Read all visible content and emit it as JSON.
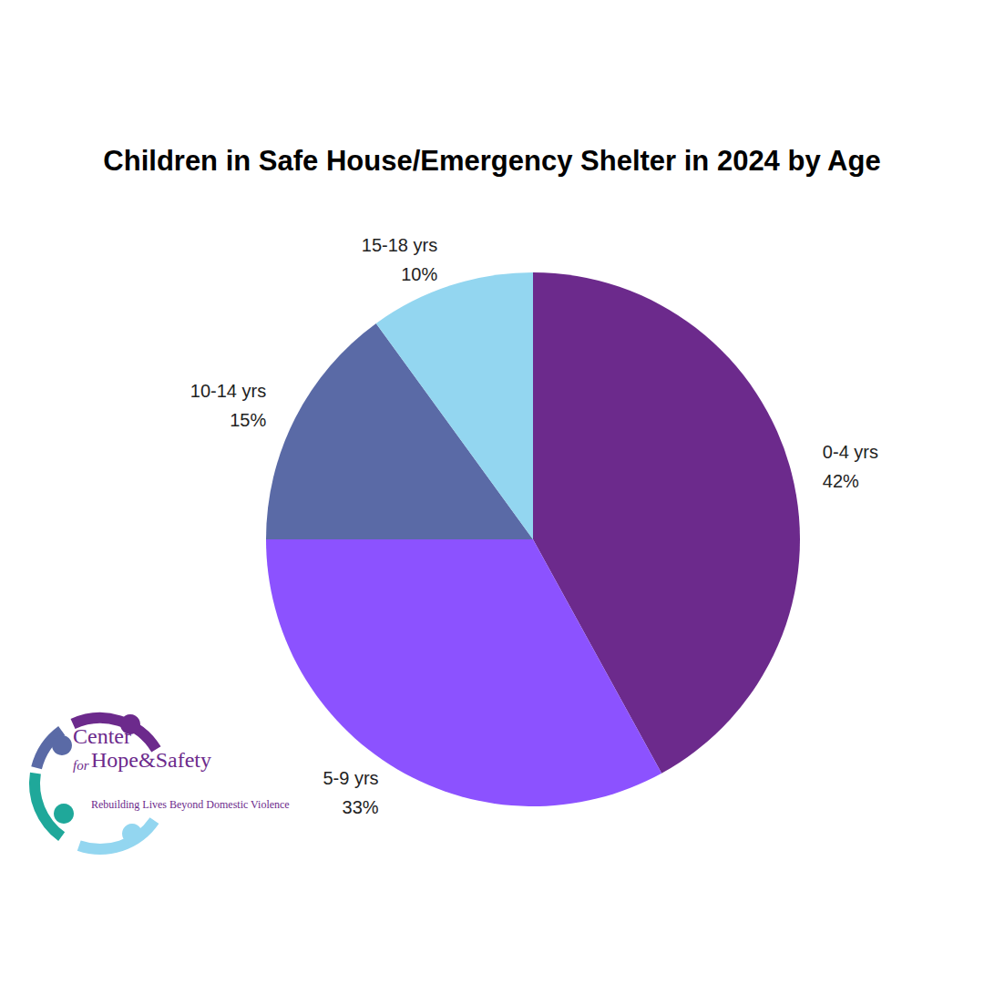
{
  "chart_data": {
    "type": "pie",
    "title": "Children in Safe House/Emergency Shelter in 2024 by Age",
    "categories": [
      "0-4 yrs",
      "5-9 yrs",
      "10-14 yrs",
      "15-18 yrs"
    ],
    "values": [
      42,
      33,
      15,
      10
    ],
    "value_labels": [
      "42%",
      "33%",
      "15%",
      "10%"
    ],
    "colors": [
      "#6c2a8c",
      "#8c52ff",
      "#5a6aa6",
      "#93d6f0"
    ],
    "data_labels": true,
    "annotations": [
      "Center",
      "for",
      "Hope&Safety",
      "Rebuilding Lives Beyond Domestic Violence"
    ]
  }
}
